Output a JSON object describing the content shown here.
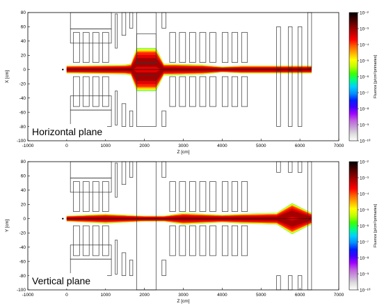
{
  "colorbar": {
    "title": "Fluence [p/cm²/primaries]",
    "ticks": [
      "10⁻²",
      "10⁻³",
      "10⁻⁴",
      "10⁻⁵",
      "10⁻⁶",
      "10⁻⁷",
      "10⁻⁸",
      "10⁻⁹",
      "10⁻¹⁰"
    ],
    "exponents": [
      -2,
      -3,
      -4,
      -5,
      -6,
      -7,
      -8,
      -9,
      -10
    ],
    "range": [
      -10,
      -2
    ],
    "colors": [
      "#ffffff",
      "#dddddd",
      "#c8a0d8",
      "#c060e0",
      "#a000ff",
      "#4000ff",
      "#0020ff",
      "#0090ff",
      "#00d0ff",
      "#00ff80",
      "#40ff00",
      "#c0ff00",
      "#ffff00",
      "#ffb000",
      "#ff6000",
      "#ff0000",
      "#c00000",
      "#800000",
      "#400000",
      "#000000"
    ]
  },
  "chart_data": [
    {
      "type": "heatmap",
      "ylabel": "X [cm]",
      "xlabel": "Z [cm]",
      "annotation": "Horizontal plane",
      "xlim": [
        -1000,
        7000
      ],
      "ylim": [
        -100,
        80
      ],
      "xticks": [
        "-1000",
        "0",
        "1000",
        "2000",
        "3000",
        "4000",
        "5000",
        "6000",
        "7000"
      ],
      "yticks": [
        "-100",
        "-80",
        "-60",
        "-40",
        "-20",
        "0",
        "20",
        "40",
        "60",
        "80"
      ],
      "beam_envelope_cm": {
        "z": [
          0,
          1500,
          1650,
          1800,
          2300,
          2500,
          2700,
          3500,
          4000,
          4500,
          6300
        ],
        "half_width": [
          4,
          5,
          6,
          15,
          15,
          6,
          6,
          5,
          3,
          4,
          4
        ],
        "split_center": [
          0,
          0,
          0,
          10,
          10,
          0,
          0,
          0,
          0,
          0,
          0
        ]
      },
      "peak_fluence_exponent": -2
    },
    {
      "type": "heatmap",
      "ylabel": "Y [cm]",
      "xlabel": "Z [cm]",
      "annotation": "Vertical plane",
      "xlim": [
        -1000,
        7000
      ],
      "ylim": [
        -100,
        80
      ],
      "xticks": [
        "-1000",
        "0",
        "1000",
        "2000",
        "3000",
        "4000",
        "5000",
        "6000",
        "7000"
      ],
      "yticks": [
        "-100",
        "-80",
        "-60",
        "-40",
        "-20",
        "0",
        "20",
        "40",
        "60",
        "80"
      ],
      "beam_envelope_cm": {
        "z": [
          0,
          1000,
          2000,
          2500,
          3000,
          3500,
          4000,
          4500,
          5400,
          5800,
          6300
        ],
        "half_width": [
          3,
          5,
          3,
          3,
          6,
          5,
          4,
          5,
          6,
          11,
          6
        ],
        "split_center": [
          0,
          0,
          0,
          0,
          0,
          0,
          0,
          0,
          0,
          7,
          0
        ]
      },
      "peak_fluence_exponent": -2
    }
  ]
}
